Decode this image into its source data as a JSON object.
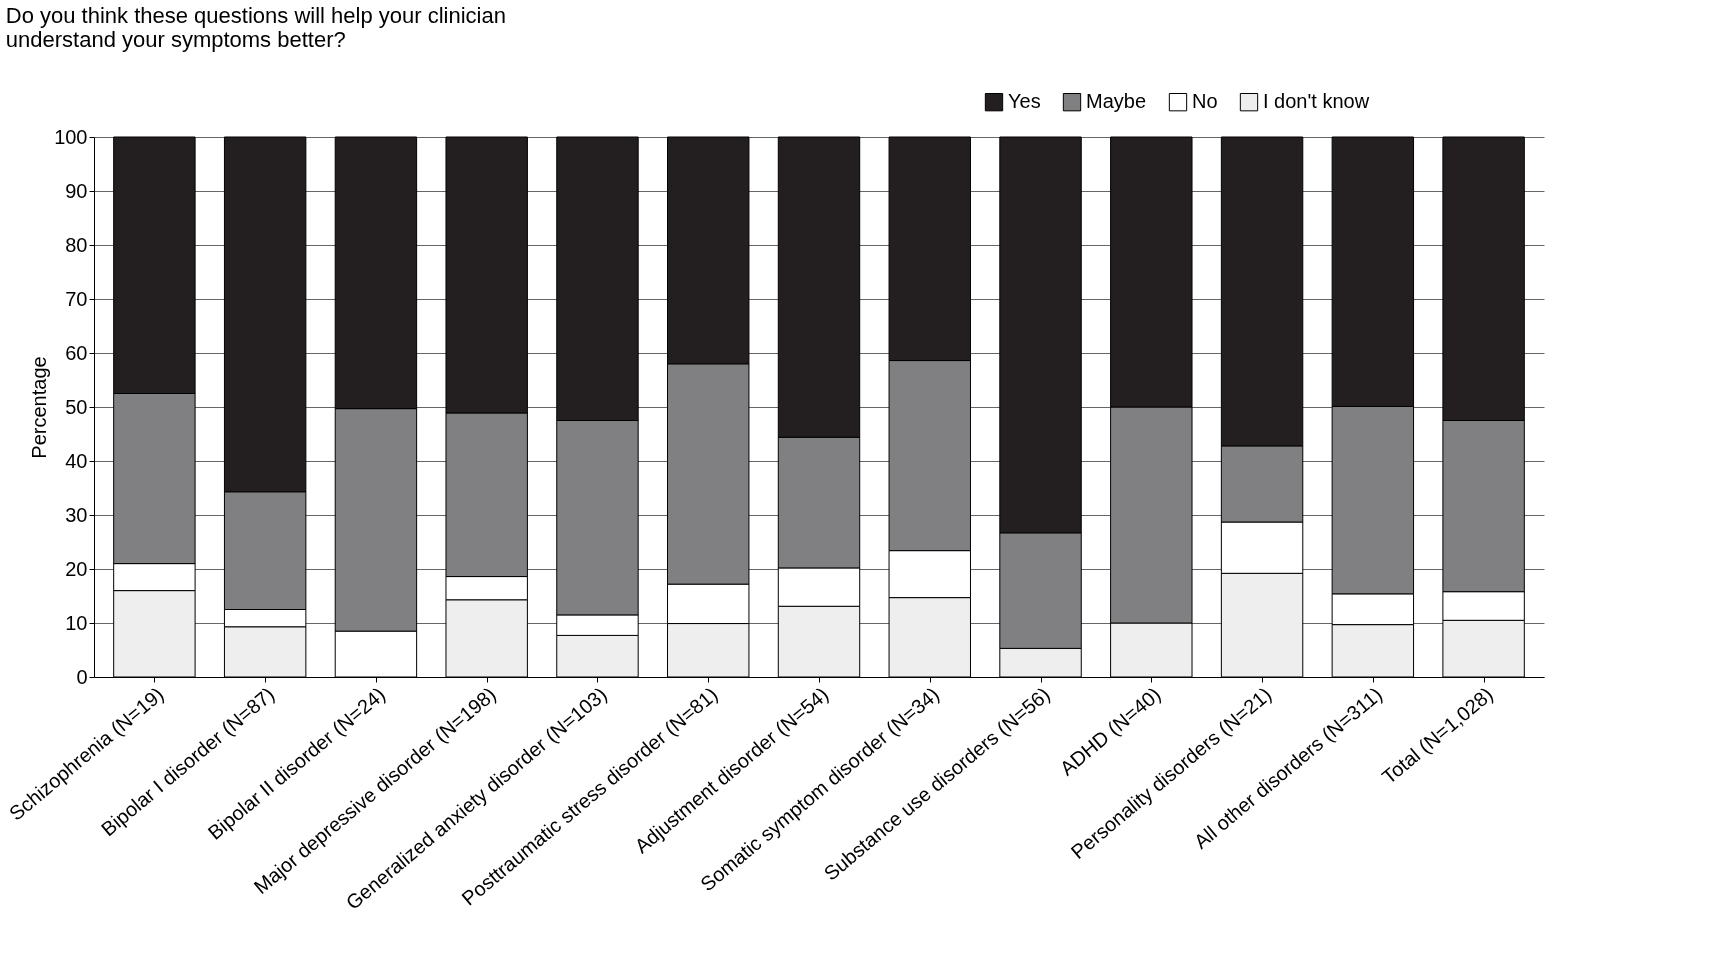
{
  "chart_data": {
    "type": "bar",
    "stacked": true,
    "title": [
      "Do you think these questions will help your clinician",
      "understand your symptoms better?"
    ],
    "ylabel": "Percentage",
    "categories": [
      "Schizophrenia (N=19)",
      "Bipolar I disorder (N=87)",
      "Bipolar II disorder (N=24)",
      "Major depressive disorder (N=198)",
      "Generalized anxiety disorder (N=103)",
      "Posttraumatic stress disorder (N=81)",
      "Adjustment disorder (N=54)",
      "Somatic symptom disorder (N=34)",
      "Substance use disorders (N=56)",
      "ADHD (N=40)",
      "Personality disorders (N=21)",
      "All other disorders (N=311)",
      "Total (N=1,028)"
    ],
    "series": [
      {
        "name": "I don't know",
        "color": "#eeeeee",
        "values": [
          16,
          9.3,
          0,
          14.3,
          7.7,
          9.9,
          13.1,
          14.7,
          5.3,
          10,
          19.2,
          9.7,
          10.5
        ]
      },
      {
        "name": "No",
        "color": "#ffffff",
        "values": [
          5,
          3.2,
          8.5,
          4.3,
          3.8,
          7.3,
          7.1,
          8.7,
          0,
          0,
          9.5,
          5.7,
          5.3
        ]
      },
      {
        "name": "Maybe",
        "color": "#808083",
        "values": [
          31.5,
          21.8,
          41.2,
          30.3,
          36,
          40.8,
          24.2,
          35.2,
          21.4,
          40,
          14.1,
          34.7,
          31.7
        ]
      },
      {
        "name": "Yes",
        "color": "#231f20",
        "values": [
          47.5,
          65.7,
          50.3,
          51.1,
          52.5,
          42,
          55.6,
          41.4,
          73.3,
          50,
          57.2,
          49.9,
          52.5
        ]
      }
    ],
    "ylim": [
      0,
      100
    ],
    "yticks": [
      0,
      10,
      20,
      30,
      40,
      50,
      60,
      70,
      80,
      90,
      100
    ],
    "grid": "y",
    "legend": "top right"
  }
}
